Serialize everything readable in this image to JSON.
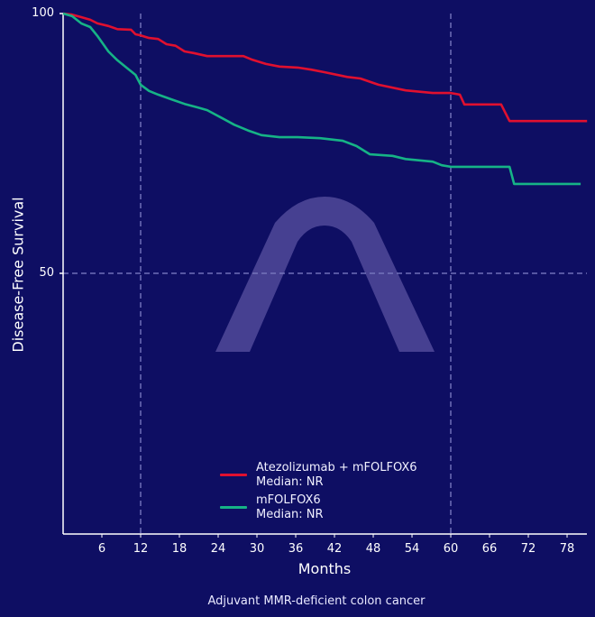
{
  "chart_data": {
    "type": "line",
    "subtype": "kaplan-meier step",
    "title": "",
    "caption": "Adjuvant MMR-deficient colon cancer",
    "xlabel": "Months",
    "ylabel": "Disease-Free Survival",
    "xlim": [
      0,
      81
    ],
    "ylim": [
      0,
      100
    ],
    "xticks": [
      6,
      12,
      18,
      24,
      30,
      36,
      42,
      48,
      54,
      60,
      66,
      72,
      78
    ],
    "yticks": [
      50,
      100
    ],
    "reference_lines": {
      "vertical_months": [
        12,
        60
      ],
      "horizontal_pct": [
        50
      ],
      "style": "dashed"
    },
    "grid": false,
    "legend_position": "lower center",
    "series": [
      {
        "name": "Atezolizumab + mFOLFOX6",
        "median": "Median: NR",
        "color": "#e0102f",
        "x": [
          0,
          1.4,
          2.8,
          4.2,
          5.3,
          7.0,
          8.4,
          10.5,
          11.2,
          12.0,
          13.3,
          14.7,
          16.0,
          17.4,
          18.8,
          20.2,
          22.3,
          25.1,
          27.9,
          29.3,
          31.4,
          33.5,
          36.3,
          38.4,
          40.5,
          44.0,
          46.0,
          48.8,
          53.0,
          57.2,
          60.0,
          61.4,
          62.1,
          67.8,
          69.1,
          81.1
        ],
        "y": [
          100,
          99.8,
          99.3,
          98.8,
          98.1,
          97.6,
          97.0,
          96.9,
          96.0,
          95.8,
          95.3,
          95.1,
          94.1,
          93.8,
          92.7,
          92.4,
          91.8,
          91.8,
          91.8,
          91.1,
          90.3,
          89.8,
          89.6,
          89.2,
          88.7,
          87.8,
          87.5,
          86.3,
          85.2,
          84.7,
          84.7,
          84.4,
          82.5,
          82.5,
          79.3,
          79.3
        ]
      },
      {
        "name": "mFOLFOX6",
        "median": "Median: NR",
        "color": "#16b386",
        "x": [
          0,
          1.4,
          2.8,
          4.2,
          5.3,
          7.0,
          8.4,
          9.8,
          11.2,
          12.0,
          13.3,
          14.7,
          16.7,
          18.8,
          20.9,
          22.3,
          24.4,
          26.5,
          28.6,
          30.7,
          33.5,
          36.3,
          39.8,
          43.3,
          45.4,
          47.5,
          51.0,
          53.0,
          57.2,
          58.6,
          60.0,
          69.1,
          69.8,
          80.1
        ],
        "y": [
          100,
          99.5,
          98.1,
          97.4,
          95.7,
          92.7,
          91.0,
          89.6,
          88.2,
          86.3,
          85.1,
          84.4,
          83.5,
          82.6,
          81.9,
          81.4,
          80.0,
          78.6,
          77.5,
          76.6,
          76.2,
          76.2,
          76.0,
          75.5,
          74.5,
          72.9,
          72.6,
          72.0,
          71.5,
          70.8,
          70.5,
          70.5,
          67.2,
          67.2
        ]
      }
    ]
  },
  "legend": {
    "items": [
      {
        "label": "Atezolizumab + mFOLFOX6",
        "sub": "Median: NR",
        "color": "#e0102f"
      },
      {
        "label": "mFOLFOX6",
        "sub": "Median: NR",
        "color": "#16b386"
      }
    ]
  },
  "axes": {
    "xlabel": "Months",
    "ylabel": "Disease-Free Survival",
    "ytick_100": "100",
    "ytick_50": "50",
    "xticks": [
      "6",
      "12",
      "18",
      "24",
      "30",
      "36",
      "42",
      "48",
      "54",
      "60",
      "66",
      "72",
      "78"
    ]
  },
  "caption": "Adjuvant MMR-deficient colon cancer",
  "colors": {
    "background": "#0e0e63",
    "axis": "#ffffff",
    "refline": "#7a7ac0",
    "watermark": "#5a52a0"
  }
}
